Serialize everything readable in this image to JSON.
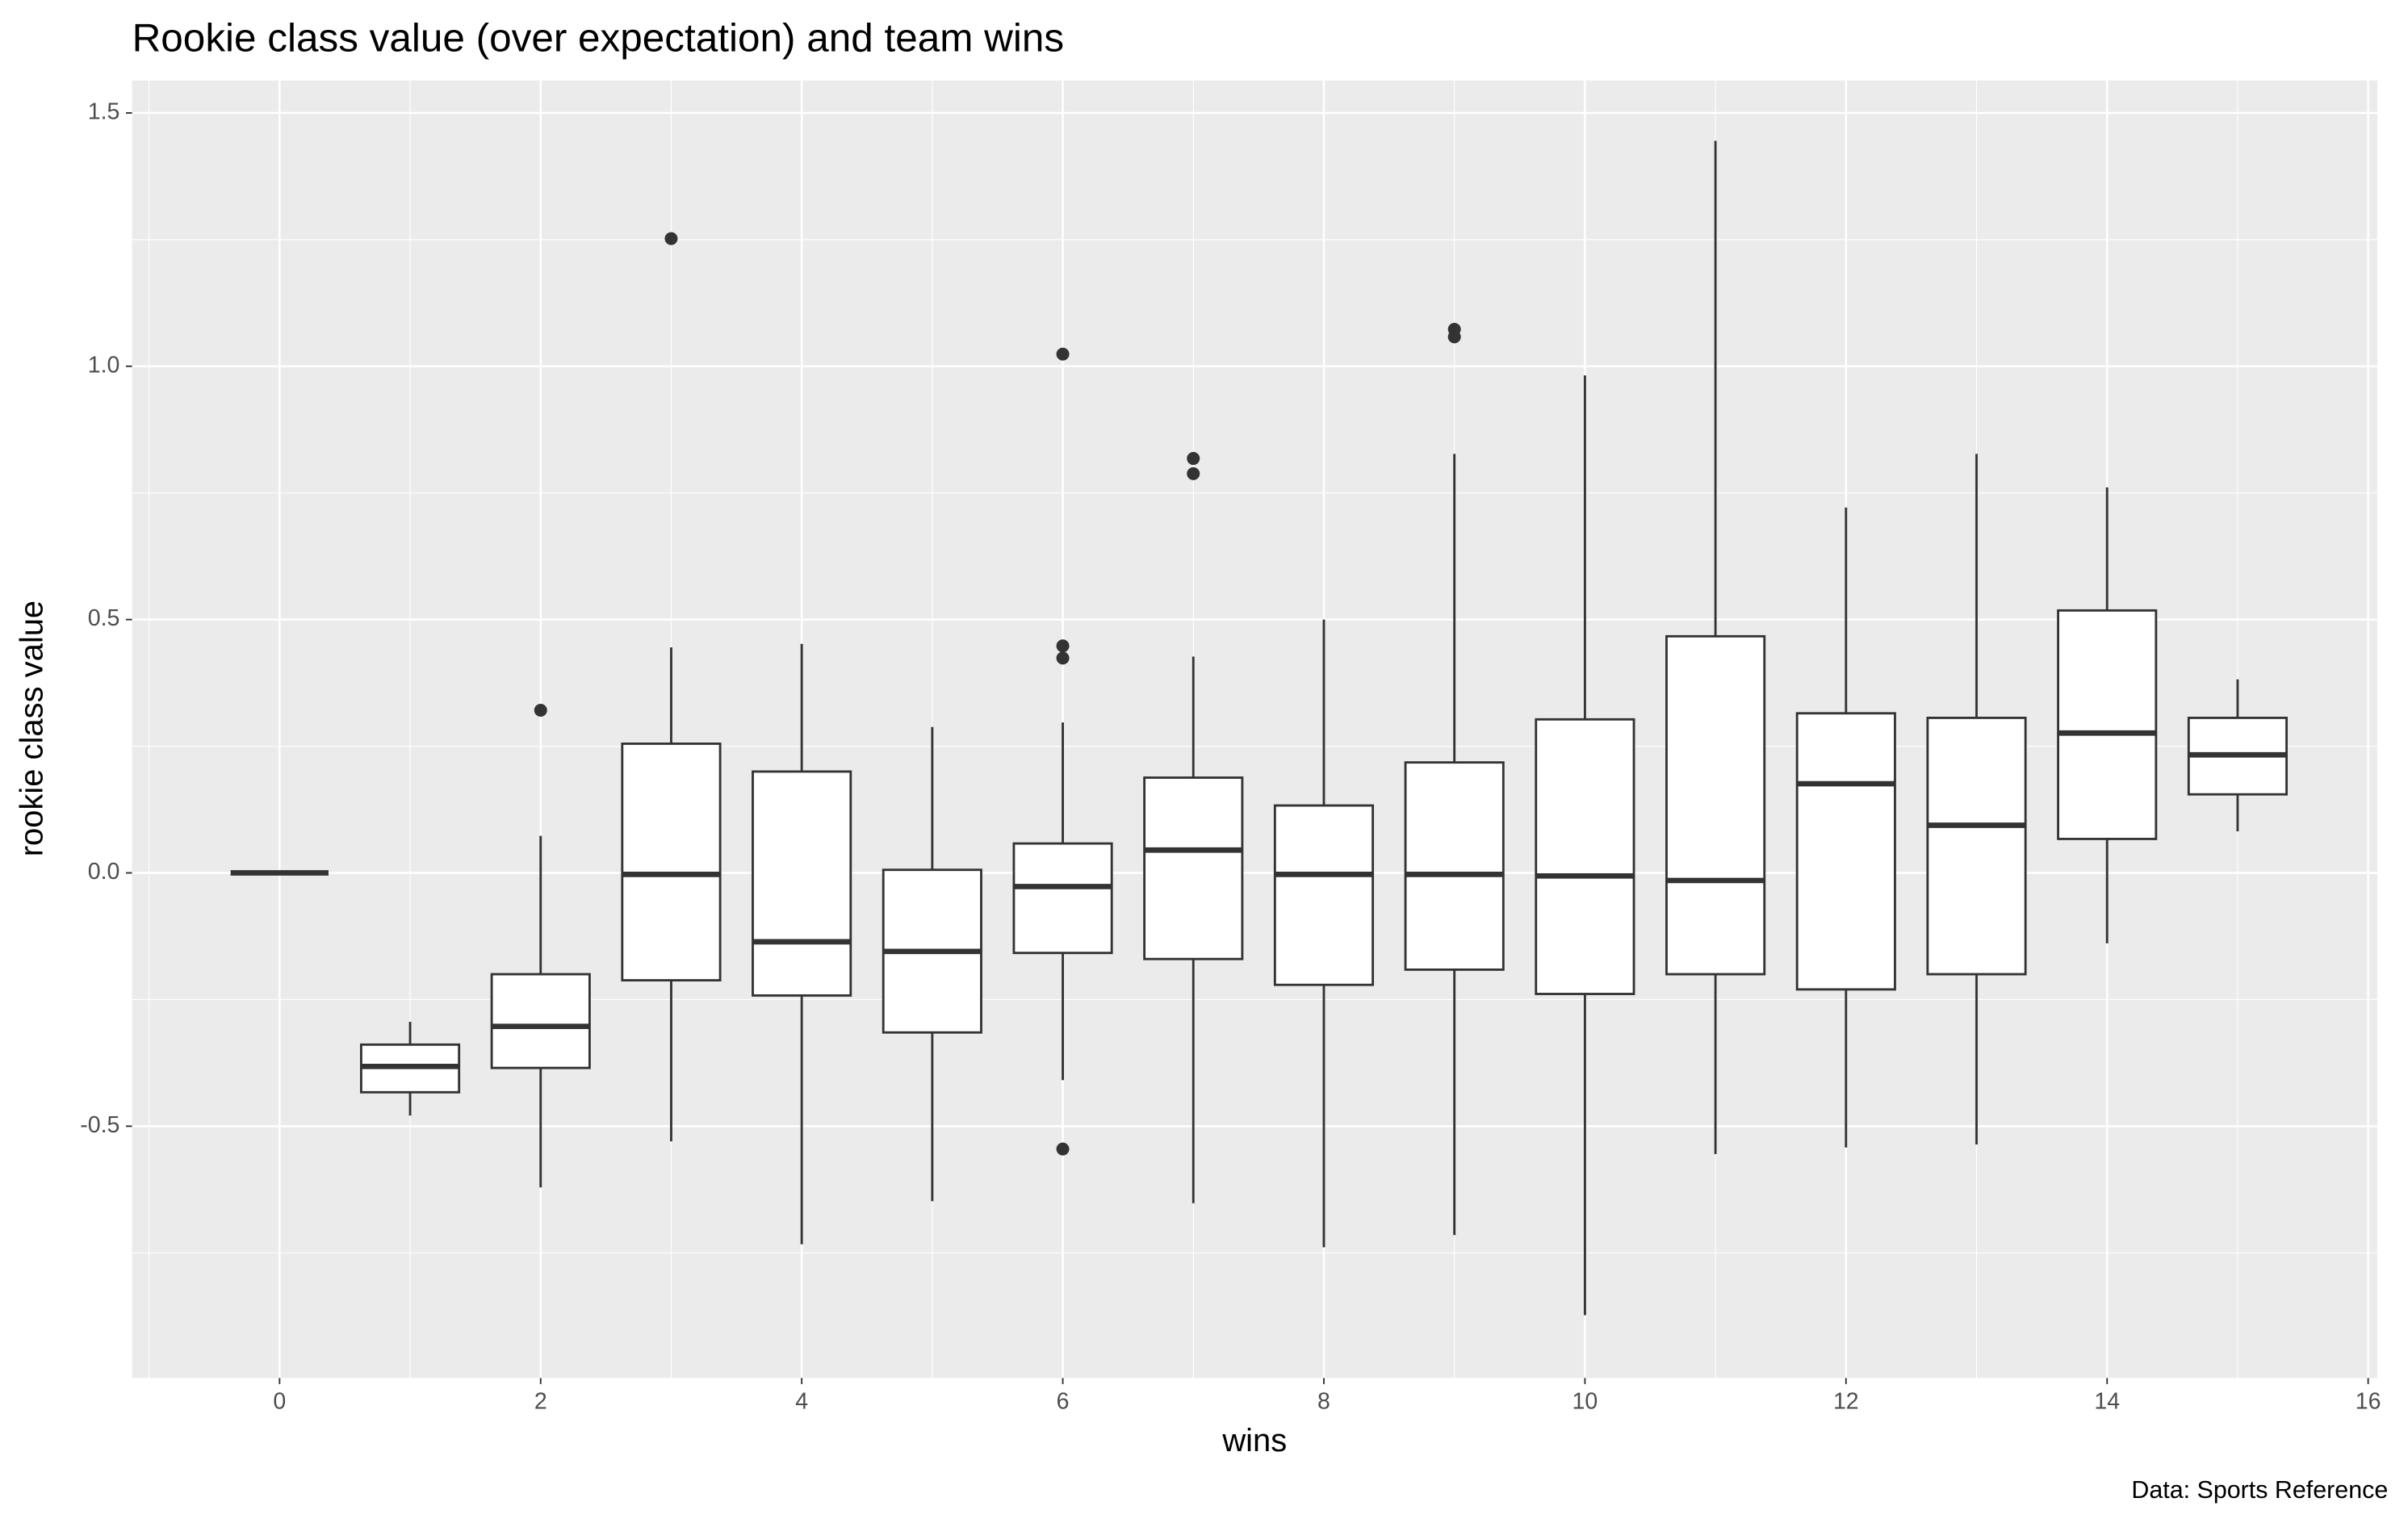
{
  "chart_data": {
    "type": "boxplot",
    "title": "Rookie class value (over expectation) and team wins",
    "x_label": "wins",
    "y_label": "rookie class value",
    "caption": "Data: Sports Reference",
    "xlim": [
      -1.13,
      16.07
    ],
    "ylim": [
      -0.997,
      1.564
    ],
    "xticks": [
      0,
      2,
      4,
      6,
      8,
      10,
      12,
      14,
      16
    ],
    "yticks": [
      -0.5,
      {
        "value": 0,
        "label": "0.0"
      },
      0.5,
      {
        "value": 1,
        "label": "1.0"
      },
      1.5
    ],
    "grid": true,
    "boxes": [
      {
        "x": 0,
        "whisker_low": 0,
        "q1": 0,
        "median": 0,
        "q3": 0,
        "whisker_high": 0,
        "outliers": []
      },
      {
        "x": 1,
        "whisker_low": -0.479,
        "q1": -0.433,
        "median": -0.382,
        "q3": -0.339,
        "whisker_high": -0.294,
        "outliers": []
      },
      {
        "x": 2,
        "whisker_low": -0.621,
        "q1": -0.385,
        "median": -0.303,
        "q3": -0.2,
        "whisker_high": 0.073,
        "outliers": [
          0.321
        ]
      },
      {
        "x": 3,
        "whisker_low": -0.53,
        "q1": -0.212,
        "median": -0.003,
        "q3": 0.255,
        "whisker_high": 0.445,
        "outliers": [
          1.252
        ]
      },
      {
        "x": 4,
        "whisker_low": -0.733,
        "q1": -0.242,
        "median": -0.136,
        "q3": 0.2,
        "whisker_high": 0.452,
        "outliers": []
      },
      {
        "x": 5,
        "whisker_low": -0.648,
        "q1": -0.315,
        "median": -0.155,
        "q3": 0.006,
        "whisker_high": 0.288,
        "outliers": []
      },
      {
        "x": 6,
        "whisker_low": -0.409,
        "q1": -0.158,
        "median": -0.027,
        "q3": 0.058,
        "whisker_high": 0.297,
        "outliers": [
          0.448,
          0.424,
          1.024,
          -0.545
        ]
      },
      {
        "x": 7,
        "whisker_low": -0.652,
        "q1": -0.17,
        "median": 0.045,
        "q3": 0.188,
        "whisker_high": 0.427,
        "outliers": [
          0.818,
          0.788
        ]
      },
      {
        "x": 8,
        "whisker_low": -0.739,
        "q1": -0.221,
        "median": -0.003,
        "q3": 0.133,
        "whisker_high": 0.5,
        "outliers": []
      },
      {
        "x": 9,
        "whisker_low": -0.715,
        "q1": -0.191,
        "median": -0.003,
        "q3": 0.218,
        "whisker_high": 0.827,
        "outliers": [
          1.058,
          1.073
        ]
      },
      {
        "x": 10,
        "whisker_low": -0.873,
        "q1": -0.239,
        "median": -0.006,
        "q3": 0.303,
        "whisker_high": 0.982,
        "outliers": []
      },
      {
        "x": 11,
        "whisker_low": -0.555,
        "q1": -0.2,
        "median": -0.015,
        "q3": 0.467,
        "whisker_high": 1.445,
        "outliers": []
      },
      {
        "x": 12,
        "whisker_low": -0.542,
        "q1": -0.23,
        "median": 0.176,
        "q3": 0.315,
        "whisker_high": 0.721,
        "outliers": []
      },
      {
        "x": 13,
        "whisker_low": -0.536,
        "q1": -0.2,
        "median": 0.094,
        "q3": 0.306,
        "whisker_high": 0.827,
        "outliers": []
      },
      {
        "x": 14,
        "whisker_low": -0.139,
        "q1": 0.067,
        "median": 0.276,
        "q3": 0.518,
        "whisker_high": 0.761,
        "outliers": []
      },
      {
        "x": 15,
        "whisker_low": 0.082,
        "q1": 0.155,
        "median": 0.233,
        "q3": 0.306,
        "whisker_high": 0.382,
        "outliers": []
      }
    ]
  }
}
